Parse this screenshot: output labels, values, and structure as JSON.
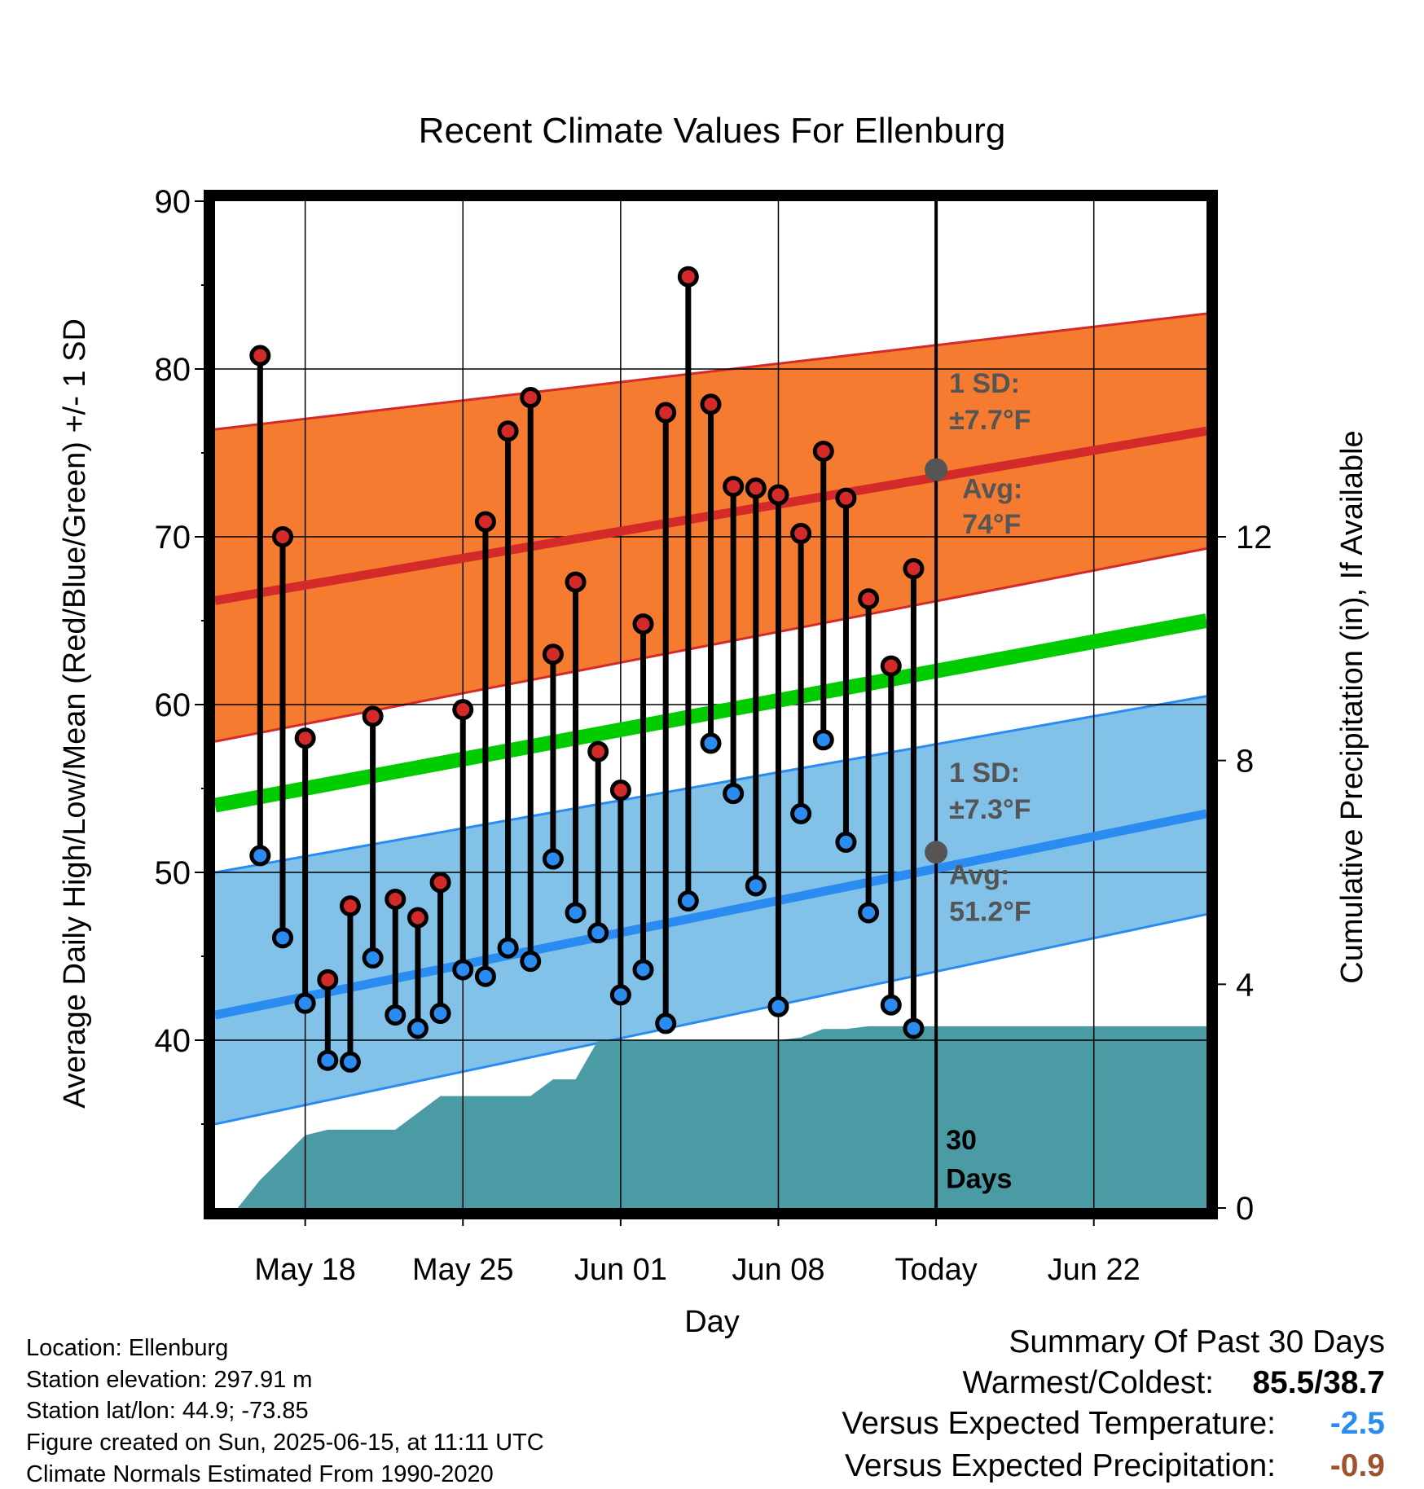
{
  "chart_data": {
    "type": "line",
    "title": "Recent Climate Values For Ellenburg",
    "xlabel": "Day",
    "ylabel": "Average Daily High/Low/Mean (Red/Blue/Green) +/- 1 SD",
    "y2label": "Cumulative Precipitation (in), If Available",
    "x_range": [
      "2025-05-14",
      "2025-06-27"
    ],
    "ylim": [
      30,
      90
    ],
    "y2lim": [
      0,
      18
    ],
    "yticks": [
      40,
      50,
      60,
      70,
      80,
      90
    ],
    "y2ticks": [
      0,
      4,
      8,
      12
    ],
    "xticks": [
      {
        "date": "2025-05-18",
        "label": "May 18"
      },
      {
        "date": "2025-05-25",
        "label": "May 25"
      },
      {
        "date": "2025-06-01",
        "label": "Jun 01"
      },
      {
        "date": "2025-06-08",
        "label": "Jun 08"
      },
      {
        "date": "2025-06-15",
        "label": "Today"
      },
      {
        "date": "2025-06-22",
        "label": "Jun 22"
      }
    ],
    "grid": true,
    "today": "2025-06-15",
    "today_label": "30 Days",
    "normals": {
      "dates": [
        "2025-05-14",
        "2025-06-27"
      ],
      "avg_high": [
        66.2,
        76.3
      ],
      "avg_high_plus_sd": [
        76.4,
        83.3
      ],
      "avg_high_minus_sd": [
        57.8,
        69.3
      ],
      "avg_mean": [
        54.0,
        65.0
      ],
      "avg_low": [
        41.5,
        53.5
      ],
      "avg_low_plus_sd": [
        50.0,
        60.5
      ],
      "avg_low_minus_sd": [
        35.0,
        47.5
      ]
    },
    "annotations": {
      "high_sd": "1 SD:",
      "high_sd_value": "±7.7°F",
      "high_avg": "Avg:",
      "high_avg_value": "74°F",
      "low_sd": "1 SD:",
      "low_sd_value": "±7.3°F",
      "low_avg": "Avg:",
      "low_avg_value": "51.2°F",
      "high_avg_today": 74.0,
      "low_avg_today": 51.2
    },
    "series": [
      {
        "name": "High",
        "dates": [
          "2025-05-16",
          "2025-05-17",
          "2025-05-18",
          "2025-05-19",
          "2025-05-20",
          "2025-05-21",
          "2025-05-22",
          "2025-05-23",
          "2025-05-24",
          "2025-05-25",
          "2025-05-26",
          "2025-05-27",
          "2025-05-28",
          "2025-05-29",
          "2025-05-30",
          "2025-05-31",
          "2025-06-01",
          "2025-06-02",
          "2025-06-03",
          "2025-06-04",
          "2025-06-05",
          "2025-06-06",
          "2025-06-07",
          "2025-06-08",
          "2025-06-09",
          "2025-06-10",
          "2025-06-11",
          "2025-06-12",
          "2025-06-13",
          "2025-06-14"
        ],
        "values": [
          80.8,
          70.0,
          58.0,
          43.6,
          48.0,
          59.3,
          48.4,
          47.3,
          49.4,
          59.7,
          70.9,
          76.3,
          78.3,
          63.0,
          67.3,
          57.2,
          54.9,
          64.8,
          77.4,
          85.5,
          77.9,
          73.0,
          72.9,
          72.5,
          70.2,
          75.1,
          72.3,
          66.3,
          62.3,
          68.1
        ]
      },
      {
        "name": "Low",
        "dates": [
          "2025-05-16",
          "2025-05-17",
          "2025-05-18",
          "2025-05-19",
          "2025-05-20",
          "2025-05-21",
          "2025-05-22",
          "2025-05-23",
          "2025-05-24",
          "2025-05-25",
          "2025-05-26",
          "2025-05-27",
          "2025-05-28",
          "2025-05-29",
          "2025-05-30",
          "2025-05-31",
          "2025-06-01",
          "2025-06-02",
          "2025-06-03",
          "2025-06-04",
          "2025-06-05",
          "2025-06-06",
          "2025-06-07",
          "2025-06-08",
          "2025-06-09",
          "2025-06-10",
          "2025-06-11",
          "2025-06-12",
          "2025-06-13",
          "2025-06-14"
        ],
        "values": [
          51.0,
          46.1,
          42.2,
          38.8,
          38.7,
          44.9,
          41.5,
          40.7,
          41.6,
          44.2,
          43.8,
          45.5,
          44.7,
          50.8,
          47.6,
          46.4,
          42.7,
          44.2,
          41.0,
          48.3,
          57.7,
          54.7,
          49.2,
          42.0,
          53.5,
          57.9,
          51.8,
          47.6,
          42.1,
          40.7
        ]
      },
      {
        "name": "Cumulative Precipitation",
        "axis": "right",
        "dates": [
          "2025-05-15",
          "2025-05-16",
          "2025-05-17",
          "2025-05-18",
          "2025-05-19",
          "2025-05-20",
          "2025-05-21",
          "2025-05-22",
          "2025-05-23",
          "2025-05-24",
          "2025-05-25",
          "2025-05-26",
          "2025-05-27",
          "2025-05-28",
          "2025-05-29",
          "2025-05-30",
          "2025-05-31",
          "2025-06-01",
          "2025-06-02",
          "2025-06-03",
          "2025-06-04",
          "2025-06-05",
          "2025-06-06",
          "2025-06-07",
          "2025-06-08",
          "2025-06-09",
          "2025-06-10",
          "2025-06-11",
          "2025-06-12",
          "2025-06-13",
          "2025-06-14",
          "2025-06-15",
          "2025-06-27"
        ],
        "values": [
          0.0,
          0.5,
          0.9,
          1.3,
          1.4,
          1.4,
          1.4,
          1.4,
          1.7,
          2.0,
          2.0,
          2.0,
          2.0,
          2.0,
          2.3,
          2.3,
          3.0,
          3.0,
          3.0,
          3.0,
          3.0,
          3.0,
          3.0,
          3.0,
          3.0,
          3.05,
          3.2,
          3.2,
          3.25,
          3.25,
          3.25,
          3.25,
          3.25
        ]
      }
    ]
  },
  "footer": {
    "location": "Location: Ellenburg",
    "elevation": "Station elevation: 297.91 m",
    "latlon": "Station lat/lon: 44.9; -73.85",
    "created": "Figure created on Sun, 2025-06-15, at 11:11 UTC",
    "normals": "Climate Normals Estimated From 1990-2020"
  },
  "summary": {
    "heading": "Summary Of Past 30 Days",
    "warmest_coldest_label": "Warmest/Coldest:",
    "warmest_coldest_value": "85.5/38.7",
    "temp_label": "Versus Expected Temperature:",
    "temp_value": "-2.5",
    "precip_label": "Versus Expected Precipitation:",
    "precip_value": "-0.9"
  },
  "colors": {
    "high_band": "#F47B30",
    "high_line": "#D42A2A",
    "low_band": "#82C1E8",
    "low_line": "#2A8CF0",
    "mean_line": "#00CC00",
    "precip": "#4B9BA5",
    "high_dot": "#D42A2A",
    "low_dot": "#2A8CF0",
    "temp_anomaly": "#2A8CF0",
    "precip_anomaly": "#A0522D",
    "annotation": "#555555"
  }
}
